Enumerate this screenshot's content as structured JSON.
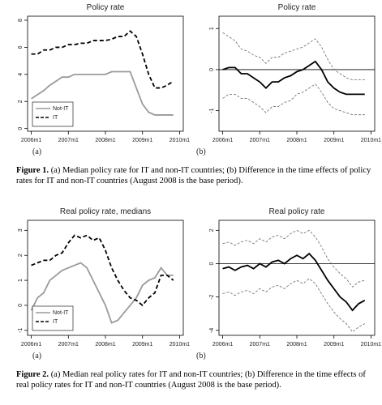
{
  "chart_data": [
    {
      "type": "line",
      "title": "Policy rate",
      "panel": "(a)",
      "x": [
        2006,
        2006.167,
        2006.333,
        2006.5,
        2006.667,
        2006.833,
        2007,
        2007.167,
        2007.333,
        2007.5,
        2007.667,
        2007.833,
        2008,
        2008.167,
        2008.333,
        2008.5,
        2008.667,
        2008.833,
        2009,
        2009.167,
        2009.333,
        2009.5,
        2009.667,
        2009.833
      ],
      "xlim": [
        2005.9,
        2010.1
      ],
      "xticks": [
        {
          "value": 2006,
          "label": "2006m1"
        },
        {
          "value": 2007,
          "label": "2007m1"
        },
        {
          "value": 2008,
          "label": "2008m1"
        },
        {
          "value": 2009,
          "label": "2009m1"
        },
        {
          "value": 2010,
          "label": "2010m1"
        }
      ],
      "ylim": [
        -0.2,
        8.3
      ],
      "yticks": [
        0,
        2,
        4,
        6,
        8
      ],
      "legend": "lower-left",
      "series": [
        {
          "name": "Not-IT",
          "color": "#9a9a9a",
          "dash": false,
          "values": [
            2.2,
            2.5,
            2.8,
            3.2,
            3.5,
            3.8,
            3.8,
            4.0,
            4.0,
            4.0,
            4.0,
            4.0,
            4.0,
            4.2,
            4.2,
            4.2,
            4.2,
            3.0,
            1.8,
            1.2,
            1.0,
            1.0,
            1.0,
            1.0
          ]
        },
        {
          "name": "IT",
          "color": "#000000",
          "dash": true,
          "values": [
            5.5,
            5.5,
            5.8,
            5.8,
            6.0,
            6.0,
            6.2,
            6.2,
            6.3,
            6.3,
            6.5,
            6.5,
            6.5,
            6.6,
            6.8,
            6.8,
            7.2,
            6.8,
            5.5,
            4.0,
            3.0,
            3.0,
            3.2,
            3.5
          ]
        }
      ]
    },
    {
      "type": "line",
      "title": "Policy rate",
      "panel": "(b)",
      "x": [
        2006,
        2006.167,
        2006.333,
        2006.5,
        2006.667,
        2006.833,
        2007,
        2007.167,
        2007.333,
        2007.5,
        2007.667,
        2007.833,
        2008,
        2008.167,
        2008.333,
        2008.5,
        2008.667,
        2008.833,
        2009,
        2009.167,
        2009.333,
        2009.5,
        2009.667,
        2009.833
      ],
      "xlim": [
        2005.9,
        2010.1
      ],
      "xticks": [
        {
          "value": 2006,
          "label": "2006m1"
        },
        {
          "value": 2007,
          "label": "2007m1"
        },
        {
          "value": 2008,
          "label": "2008m1"
        },
        {
          "value": 2009,
          "label": "2009m1"
        },
        {
          "value": 2010,
          "label": "2010m1"
        }
      ],
      "ylim": [
        -1.5,
        1.3
      ],
      "yticks": [
        -1,
        0,
        1
      ],
      "hline": 0,
      "series": [
        {
          "color": "#666666",
          "dash": true,
          "values": [
            0.9,
            0.8,
            0.7,
            0.5,
            0.45,
            0.35,
            0.3,
            0.15,
            0.3,
            0.3,
            0.4,
            0.45,
            0.5,
            0.55,
            0.65,
            0.75,
            0.55,
            0.25,
            0,
            -0.1,
            -0.2,
            -0.25,
            -0.25,
            -0.25
          ]
        },
        {
          "color": "#000000",
          "dash": false,
          "values": [
            0,
            0.05,
            0.05,
            -0.1,
            -0.1,
            -0.2,
            -0.3,
            -0.45,
            -0.3,
            -0.3,
            -0.2,
            -0.15,
            -0.05,
            0,
            0.1,
            0.2,
            0,
            -0.3,
            -0.45,
            -0.55,
            -0.6,
            -0.6,
            -0.6,
            -0.6
          ]
        },
        {
          "color": "#666666",
          "dash": true,
          "values": [
            -0.7,
            -0.6,
            -0.6,
            -0.7,
            -0.7,
            -0.8,
            -0.9,
            -1.05,
            -0.9,
            -0.9,
            -0.8,
            -0.75,
            -0.6,
            -0.55,
            -0.45,
            -0.35,
            -0.55,
            -0.8,
            -0.95,
            -1.0,
            -1.05,
            -1.1,
            -1.1,
            -1.1
          ]
        }
      ]
    },
    {
      "type": "line",
      "title": "Real policy rate, medians",
      "panel": "(a)",
      "x": [
        2006,
        2006.167,
        2006.333,
        2006.5,
        2006.667,
        2006.833,
        2007,
        2007.167,
        2007.333,
        2007.5,
        2007.667,
        2007.833,
        2008,
        2008.167,
        2008.333,
        2008.5,
        2008.667,
        2008.833,
        2009,
        2009.167,
        2009.333,
        2009.5,
        2009.667,
        2009.833
      ],
      "xlim": [
        2005.9,
        2010.1
      ],
      "xticks": [
        {
          "value": 2006,
          "label": "2006m1"
        },
        {
          "value": 2007,
          "label": "2007m1"
        },
        {
          "value": 2008,
          "label": "2008m1"
        },
        {
          "value": 2009,
          "label": "2009m1"
        },
        {
          "value": 2010,
          "label": "2010m1"
        }
      ],
      "ylim": [
        -1.2,
        3.4
      ],
      "yticks": [
        -1,
        0,
        1,
        2,
        3
      ],
      "legend": "lower-left",
      "series": [
        {
          "name": "Not-IT",
          "color": "#9a9a9a",
          "dash": false,
          "values": [
            -0.2,
            0.3,
            0.5,
            1.0,
            1.2,
            1.4,
            1.5,
            1.6,
            1.7,
            1.5,
            1.0,
            0.5,
            0.0,
            -0.7,
            -0.6,
            -0.3,
            0.0,
            0.3,
            0.8,
            1.0,
            1.1,
            1.5,
            1.2,
            1.2
          ]
        },
        {
          "name": "IT",
          "color": "#000000",
          "dash": true,
          "values": [
            1.6,
            1.7,
            1.8,
            1.8,
            2.0,
            2.1,
            2.5,
            2.8,
            2.7,
            2.8,
            2.6,
            2.7,
            2.2,
            1.5,
            1.0,
            0.6,
            0.3,
            0.2,
            0.0,
            0.3,
            0.5,
            1.2,
            1.2,
            1.0
          ]
        }
      ]
    },
    {
      "type": "line",
      "title": "Real policy rate",
      "panel": "(b)",
      "x": [
        2006,
        2006.167,
        2006.333,
        2006.5,
        2006.667,
        2006.833,
        2007,
        2007.167,
        2007.333,
        2007.5,
        2007.667,
        2007.833,
        2008,
        2008.167,
        2008.333,
        2008.5,
        2008.667,
        2008.833,
        2009,
        2009.167,
        2009.333,
        2009.5,
        2009.667,
        2009.833
      ],
      "xlim": [
        2005.9,
        2010.1
      ],
      "xticks": [
        {
          "value": 2006,
          "label": "2006m1"
        },
        {
          "value": 2007,
          "label": "2007m1"
        },
        {
          "value": 2008,
          "label": "2008m1"
        },
        {
          "value": 2009,
          "label": "2009m1"
        },
        {
          "value": 2010,
          "label": "2010m1"
        }
      ],
      "ylim": [
        -4.3,
        2.6
      ],
      "yticks": [
        -4,
        -2,
        0,
        2
      ],
      "hline": 0,
      "series": [
        {
          "color": "#666666",
          "dash": true,
          "values": [
            1.2,
            1.3,
            1.1,
            1.3,
            1.4,
            1.2,
            1.5,
            1.3,
            1.6,
            1.7,
            1.5,
            1.8,
            2.0,
            1.8,
            2.0,
            1.6,
            1.0,
            0.3,
            -0.2,
            -0.6,
            -0.9,
            -1.4,
            -1.1,
            -1.0
          ]
        },
        {
          "color": "#000000",
          "dash": false,
          "values": [
            -0.3,
            -0.2,
            -0.4,
            -0.2,
            -0.1,
            -0.3,
            0,
            -0.2,
            0.1,
            0.2,
            0,
            0.3,
            0.5,
            0.3,
            0.6,
            0.2,
            -0.4,
            -1.0,
            -1.5,
            -2.0,
            -2.3,
            -2.8,
            -2.4,
            -2.2
          ]
        },
        {
          "color": "#666666",
          "dash": true,
          "values": [
            -1.8,
            -1.7,
            -1.9,
            -1.7,
            -1.6,
            -1.8,
            -1.5,
            -1.7,
            -1.4,
            -1.3,
            -1.5,
            -1.2,
            -1.0,
            -1.2,
            -0.9,
            -1.2,
            -1.8,
            -2.4,
            -2.9,
            -3.3,
            -3.6,
            -4.1,
            -3.8,
            -3.6
          ]
        }
      ]
    }
  ],
  "captions": [
    {
      "label": "Figure 1.",
      "text": " (a) Median policy rate for IT and non-IT countries; (b) Difference in the time effects of policy rates for IT and non-IT countries (August 2008 is the base period)."
    },
    {
      "label": "Figure 2.",
      "text": " (a) Median real policy rates for IT and non-IT countries; (b) Difference in the time effects of real policy rates for IT and non-IT countries (August 2008 is the base period)."
    }
  ]
}
